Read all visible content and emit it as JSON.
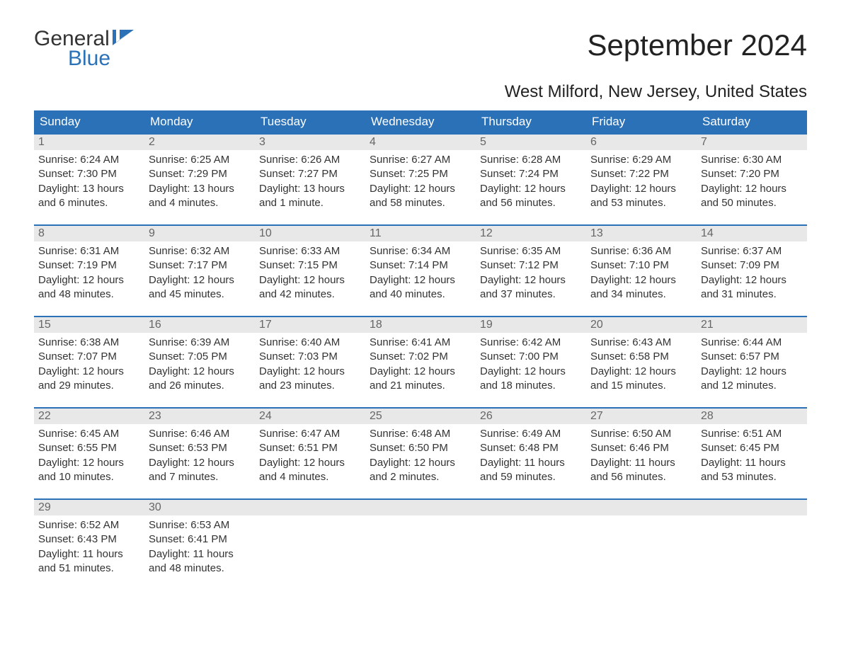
{
  "logo": {
    "word1": "General",
    "word2": "Blue"
  },
  "title": "September 2024",
  "location": "West Milford, New Jersey, United States",
  "colors": {
    "header_bg": "#2a71b8",
    "header_text": "#ffffff",
    "daynum_bg": "#e8e8e8",
    "daynum_text": "#666666",
    "body_text": "#333333",
    "accent": "#2a71b8",
    "page_bg": "#ffffff"
  },
  "day_names": [
    "Sunday",
    "Monday",
    "Tuesday",
    "Wednesday",
    "Thursday",
    "Friday",
    "Saturday"
  ],
  "weeks": [
    [
      {
        "day": "1",
        "sunrise": "Sunrise: 6:24 AM",
        "sunset": "Sunset: 7:30 PM",
        "daylight": "Daylight: 13 hours and 6 minutes."
      },
      {
        "day": "2",
        "sunrise": "Sunrise: 6:25 AM",
        "sunset": "Sunset: 7:29 PM",
        "daylight": "Daylight: 13 hours and 4 minutes."
      },
      {
        "day": "3",
        "sunrise": "Sunrise: 6:26 AM",
        "sunset": "Sunset: 7:27 PM",
        "daylight": "Daylight: 13 hours and 1 minute."
      },
      {
        "day": "4",
        "sunrise": "Sunrise: 6:27 AM",
        "sunset": "Sunset: 7:25 PM",
        "daylight": "Daylight: 12 hours and 58 minutes."
      },
      {
        "day": "5",
        "sunrise": "Sunrise: 6:28 AM",
        "sunset": "Sunset: 7:24 PM",
        "daylight": "Daylight: 12 hours and 56 minutes."
      },
      {
        "day": "6",
        "sunrise": "Sunrise: 6:29 AM",
        "sunset": "Sunset: 7:22 PM",
        "daylight": "Daylight: 12 hours and 53 minutes."
      },
      {
        "day": "7",
        "sunrise": "Sunrise: 6:30 AM",
        "sunset": "Sunset: 7:20 PM",
        "daylight": "Daylight: 12 hours and 50 minutes."
      }
    ],
    [
      {
        "day": "8",
        "sunrise": "Sunrise: 6:31 AM",
        "sunset": "Sunset: 7:19 PM",
        "daylight": "Daylight: 12 hours and 48 minutes."
      },
      {
        "day": "9",
        "sunrise": "Sunrise: 6:32 AM",
        "sunset": "Sunset: 7:17 PM",
        "daylight": "Daylight: 12 hours and 45 minutes."
      },
      {
        "day": "10",
        "sunrise": "Sunrise: 6:33 AM",
        "sunset": "Sunset: 7:15 PM",
        "daylight": "Daylight: 12 hours and 42 minutes."
      },
      {
        "day": "11",
        "sunrise": "Sunrise: 6:34 AM",
        "sunset": "Sunset: 7:14 PM",
        "daylight": "Daylight: 12 hours and 40 minutes."
      },
      {
        "day": "12",
        "sunrise": "Sunrise: 6:35 AM",
        "sunset": "Sunset: 7:12 PM",
        "daylight": "Daylight: 12 hours and 37 minutes."
      },
      {
        "day": "13",
        "sunrise": "Sunrise: 6:36 AM",
        "sunset": "Sunset: 7:10 PM",
        "daylight": "Daylight: 12 hours and 34 minutes."
      },
      {
        "day": "14",
        "sunrise": "Sunrise: 6:37 AM",
        "sunset": "Sunset: 7:09 PM",
        "daylight": "Daylight: 12 hours and 31 minutes."
      }
    ],
    [
      {
        "day": "15",
        "sunrise": "Sunrise: 6:38 AM",
        "sunset": "Sunset: 7:07 PM",
        "daylight": "Daylight: 12 hours and 29 minutes."
      },
      {
        "day": "16",
        "sunrise": "Sunrise: 6:39 AM",
        "sunset": "Sunset: 7:05 PM",
        "daylight": "Daylight: 12 hours and 26 minutes."
      },
      {
        "day": "17",
        "sunrise": "Sunrise: 6:40 AM",
        "sunset": "Sunset: 7:03 PM",
        "daylight": "Daylight: 12 hours and 23 minutes."
      },
      {
        "day": "18",
        "sunrise": "Sunrise: 6:41 AM",
        "sunset": "Sunset: 7:02 PM",
        "daylight": "Daylight: 12 hours and 21 minutes."
      },
      {
        "day": "19",
        "sunrise": "Sunrise: 6:42 AM",
        "sunset": "Sunset: 7:00 PM",
        "daylight": "Daylight: 12 hours and 18 minutes."
      },
      {
        "day": "20",
        "sunrise": "Sunrise: 6:43 AM",
        "sunset": "Sunset: 6:58 PM",
        "daylight": "Daylight: 12 hours and 15 minutes."
      },
      {
        "day": "21",
        "sunrise": "Sunrise: 6:44 AM",
        "sunset": "Sunset: 6:57 PM",
        "daylight": "Daylight: 12 hours and 12 minutes."
      }
    ],
    [
      {
        "day": "22",
        "sunrise": "Sunrise: 6:45 AM",
        "sunset": "Sunset: 6:55 PM",
        "daylight": "Daylight: 12 hours and 10 minutes."
      },
      {
        "day": "23",
        "sunrise": "Sunrise: 6:46 AM",
        "sunset": "Sunset: 6:53 PM",
        "daylight": "Daylight: 12 hours and 7 minutes."
      },
      {
        "day": "24",
        "sunrise": "Sunrise: 6:47 AM",
        "sunset": "Sunset: 6:51 PM",
        "daylight": "Daylight: 12 hours and 4 minutes."
      },
      {
        "day": "25",
        "sunrise": "Sunrise: 6:48 AM",
        "sunset": "Sunset: 6:50 PM",
        "daylight": "Daylight: 12 hours and 2 minutes."
      },
      {
        "day": "26",
        "sunrise": "Sunrise: 6:49 AM",
        "sunset": "Sunset: 6:48 PM",
        "daylight": "Daylight: 11 hours and 59 minutes."
      },
      {
        "day": "27",
        "sunrise": "Sunrise: 6:50 AM",
        "sunset": "Sunset: 6:46 PM",
        "daylight": "Daylight: 11 hours and 56 minutes."
      },
      {
        "day": "28",
        "sunrise": "Sunrise: 6:51 AM",
        "sunset": "Sunset: 6:45 PM",
        "daylight": "Daylight: 11 hours and 53 minutes."
      }
    ],
    [
      {
        "day": "29",
        "sunrise": "Sunrise: 6:52 AM",
        "sunset": "Sunset: 6:43 PM",
        "daylight": "Daylight: 11 hours and 51 minutes."
      },
      {
        "day": "30",
        "sunrise": "Sunrise: 6:53 AM",
        "sunset": "Sunset: 6:41 PM",
        "daylight": "Daylight: 11 hours and 48 minutes."
      },
      {
        "day": "",
        "sunrise": "",
        "sunset": "",
        "daylight": ""
      },
      {
        "day": "",
        "sunrise": "",
        "sunset": "",
        "daylight": ""
      },
      {
        "day": "",
        "sunrise": "",
        "sunset": "",
        "daylight": ""
      },
      {
        "day": "",
        "sunrise": "",
        "sunset": "",
        "daylight": ""
      },
      {
        "day": "",
        "sunrise": "",
        "sunset": "",
        "daylight": ""
      }
    ]
  ]
}
